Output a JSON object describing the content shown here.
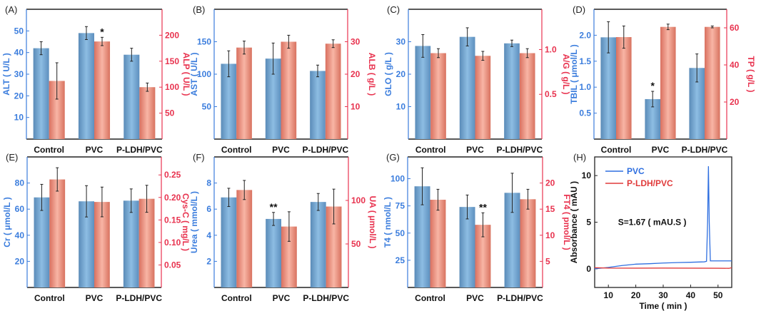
{
  "colors": {
    "blue_bar": "#6f9fca",
    "red_bar": "#f2a394",
    "blue_axis": "#3b7ddd",
    "red_axis": "#e8334f",
    "pvc_line": "#2f6fe0",
    "pldh_line": "#e03a3a"
  },
  "chart_data": [
    {
      "type": "bar",
      "panel": "(A)",
      "categories": [
        "Control",
        "PVC",
        "P-LDH/PVC"
      ],
      "left": {
        "label": "ALT ( U/L )",
        "ylim": [
          0,
          60
        ],
        "ticks": [
          10,
          20,
          30,
          40,
          50
        ],
        "values": [
          42,
          49,
          39
        ],
        "errors": [
          3,
          3,
          3
        ]
      },
      "right": {
        "label": "ALP ( U/L )",
        "ylim": [
          0,
          250
        ],
        "ticks": [
          50,
          100,
          150,
          200
        ],
        "values": [
          112,
          188,
          100
        ],
        "errors": [
          35,
          8,
          8
        ]
      },
      "annotations": [
        {
          "category": 1,
          "series": "right",
          "text": "*"
        }
      ]
    },
    {
      "type": "bar",
      "panel": "(B)",
      "categories": [
        "Control",
        "PVC",
        "P-LDH/PVC"
      ],
      "left": {
        "label": "AST ( U/L )",
        "ylim": [
          0,
          200
        ],
        "ticks": [
          50,
          100,
          150
        ],
        "values": [
          116,
          124,
          105
        ],
        "errors": [
          20,
          24,
          9
        ]
      },
      "right": {
        "label": "ALB ( g/L )",
        "ylim": [
          0,
          40
        ],
        "ticks": [
          10,
          20,
          30
        ],
        "values": [
          28.2,
          30,
          29.4
        ],
        "errors": [
          2,
          2,
          1.2
        ]
      },
      "annotations": []
    },
    {
      "type": "bar",
      "panel": "(C)",
      "categories": [
        "Control",
        "PVC",
        "P-LDH/PVC"
      ],
      "left": {
        "label": "GLO ( g/L )",
        "ylim": [
          0,
          40
        ],
        "ticks": [
          10,
          20,
          30
        ],
        "values": [
          28.7,
          31.5,
          29.5
        ],
        "errors": [
          3.5,
          2.8,
          1
        ]
      },
      "right": {
        "label": "A/G ( g/L )",
        "ylim": [
          0,
          1.45
        ],
        "ticks": [
          0.5,
          1.0
        ],
        "tick_labels": [
          "0.5",
          "1.0"
        ],
        "values": [
          0.96,
          0.93,
          0.96
        ],
        "errors": [
          0.05,
          0.05,
          0.05
        ]
      },
      "annotations": []
    },
    {
      "type": "bar",
      "panel": "(D)",
      "categories": [
        "Control",
        "PVC",
        "P-LDH/PVC"
      ],
      "left": {
        "label": "TBIL ( μmol/L )",
        "ylim": [
          0,
          2.5
        ],
        "ticks": [
          0.5,
          1.0,
          1.5,
          2.0
        ],
        "tick_labels": [
          "0.5",
          "1.0",
          "1.5",
          "2.0"
        ],
        "values": [
          1.96,
          0.77,
          1.37
        ],
        "errors": [
          0.3,
          0.15,
          0.27
        ]
      },
      "right": {
        "label": "TP ( g/L )",
        "ylim": [
          0,
          70
        ],
        "ticks": [
          20,
          40,
          60
        ],
        "values": [
          55,
          60.5,
          60.5
        ],
        "errors": [
          6,
          1.5,
          0.5
        ]
      },
      "annotations": [
        {
          "category": 1,
          "series": "left",
          "text": "*"
        }
      ]
    },
    {
      "type": "bar",
      "panel": "(E)",
      "categories": [
        "Control",
        "PVC",
        "P-LDH/PVC"
      ],
      "left": {
        "label": "Cr ( μmol/L )",
        "ylim": [
          0,
          100
        ],
        "ticks": [
          20,
          40,
          60,
          80
        ],
        "values": [
          69,
          66,
          66.5
        ],
        "errors": [
          10,
          12,
          9
        ]
      },
      "right": {
        "label": "Cys-C ( mg/L )",
        "ylim": [
          0,
          0.29
        ],
        "ticks": [
          0.05,
          0.1,
          0.15,
          0.2,
          0.25
        ],
        "tick_labels": [
          "0.05",
          "0.10",
          "0.15",
          "0.20",
          "0.25"
        ],
        "values": [
          0.24,
          0.19,
          0.197
        ],
        "errors": [
          0.026,
          0.033,
          0.03
        ]
      },
      "annotations": []
    },
    {
      "type": "bar",
      "panel": "(F)",
      "categories": [
        "Control",
        "PVC",
        "P-LDH/PVC"
      ],
      "left": {
        "label": "Urea ( mmol/L )",
        "ylim": [
          0,
          10
        ],
        "ticks": [
          2,
          4,
          6,
          8
        ],
        "values": [
          6.9,
          5.25,
          6.55
        ],
        "errors": [
          0.7,
          0.5,
          0.65
        ]
      },
      "right": {
        "label": "UA ( μmol/L )",
        "ylim": [
          0,
          150
        ],
        "ticks": [
          50,
          100
        ],
        "values": [
          112,
          70,
          93
        ],
        "errors": [
          11,
          17,
          20
        ]
      },
      "annotations": [
        {
          "category": 1,
          "series": "left",
          "text": "**"
        }
      ]
    },
    {
      "type": "bar",
      "panel": "(G)",
      "categories": [
        "Control",
        "PVC",
        "P-LDH/PVC"
      ],
      "left": {
        "label": "T4 ( nmol/L )",
        "ylim": [
          0,
          120
        ],
        "ticks": [
          25,
          50,
          75,
          100
        ],
        "values": [
          93,
          74,
          87
        ],
        "errors": [
          17,
          11,
          18
        ]
      },
      "right": {
        "label": "FT4 ( pmol/L )",
        "ylim": [
          0,
          25
        ],
        "ticks": [
          5,
          10,
          15,
          20
        ],
        "values": [
          16.8,
          12,
          16.9
        ],
        "errors": [
          2,
          2.3,
          1.9
        ]
      },
      "annotations": [
        {
          "category": 1,
          "series": "right",
          "text": "**"
        }
      ]
    },
    {
      "type": "line",
      "panel": "(H)",
      "xlabel": "Time ( min )",
      "ylabel": "Absorbance ( mAU )",
      "xlim": [
        5,
        55
      ],
      "ylim": [
        -2,
        12
      ],
      "xticks": [
        10,
        20,
        30,
        40,
        50
      ],
      "yticks": [
        0,
        5,
        10
      ],
      "annotation": "S=1.67 ( mAU.S )",
      "legend": "top-left",
      "series": [
        {
          "name": "PVC",
          "x": [
            5,
            10,
            15,
            20,
            25,
            30,
            35,
            40,
            45,
            45.8,
            46.2,
            46.5,
            46.8,
            47.2,
            48,
            50,
            55
          ],
          "y": [
            0,
            0.15,
            0.35,
            0.5,
            0.55,
            0.62,
            0.67,
            0.7,
            0.75,
            0.8,
            5,
            11,
            5,
            0.85,
            0.85,
            0.85,
            0.85
          ]
        },
        {
          "name": "P-LDH/PVC",
          "x": [
            5,
            10,
            20,
            30,
            40,
            50,
            54,
            55
          ],
          "y": [
            0.12,
            0.08,
            0.07,
            0.08,
            0.07,
            0.06,
            0.05,
            0.12
          ]
        }
      ]
    }
  ]
}
